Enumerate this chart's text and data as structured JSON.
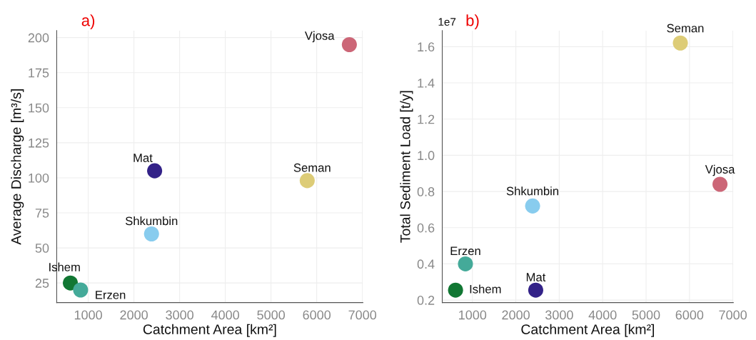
{
  "chart_data": [
    {
      "type": "scatter",
      "title": "a)",
      "xlabel": "Catchment Area [km²]",
      "ylabel": "Average Discharge [m³/s]",
      "xlim": [
        310,
        7010
      ],
      "xticks": [
        1000,
        2000,
        3000,
        4000,
        5000,
        6000,
        7000
      ],
      "ylim": [
        11,
        205
      ],
      "yticks": [
        25,
        50,
        75,
        100,
        125,
        150,
        175,
        200
      ],
      "grid": true,
      "marker": "circle",
      "series": [
        {
          "name": "Vjosa",
          "color": "#cc6677",
          "x": [
            6714
          ],
          "values": [
            195
          ]
        },
        {
          "name": "Mat",
          "color": "#332288",
          "x": [
            2453
          ],
          "values": [
            105
          ]
        },
        {
          "name": "Seman",
          "color": "#ddcc77",
          "x": [
            5792
          ],
          "values": [
            98
          ]
        },
        {
          "name": "Shkumbin",
          "color": "#88ccee",
          "x": [
            2385
          ],
          "values": [
            60
          ]
        },
        {
          "name": "Ishem",
          "color": "#117733",
          "x": [
            609
          ],
          "values": [
            25
          ]
        },
        {
          "name": "Erzen",
          "color": "#44aa99",
          "x": [
            833
          ],
          "values": [
            20
          ]
        }
      ]
    },
    {
      "type": "scatter",
      "title": "b)",
      "xlabel": "Catchment Area [km²]",
      "ylabel": "Total Sediment Load [t/y]",
      "annotations": [
        "1e7"
      ],
      "xlim": [
        305,
        7010
      ],
      "xticks": [
        1000,
        2000,
        3000,
        4000,
        5000,
        6000,
        7000
      ],
      "ylim": [
        0.186,
        1.689
      ],
      "yticks": [
        0.2,
        0.4,
        0.6,
        0.8,
        {
          "value": 1.0,
          "label": "1.0"
        },
        1.2,
        1.4,
        1.6
      ],
      "grid": true,
      "marker": "circle",
      "series": [
        {
          "name": "Seman",
          "color": "#ddcc77",
          "x": [
            5790
          ],
          "values": [
            1.62
          ]
        },
        {
          "name": "Vjosa",
          "color": "#cc6677",
          "x": [
            6703
          ],
          "values": [
            0.84
          ]
        },
        {
          "name": "Shkumbin",
          "color": "#88ccee",
          "x": [
            2386
          ],
          "values": [
            0.72
          ]
        },
        {
          "name": "Erzen",
          "color": "#44aa99",
          "x": [
            839
          ],
          "values": [
            0.4
          ]
        },
        {
          "name": "Ishem",
          "color": "#117733",
          "x": [
            611
          ],
          "values": [
            0.255
          ]
        },
        {
          "name": "Mat",
          "color": "#332288",
          "x": [
            2458
          ],
          "values": [
            0.255
          ]
        }
      ]
    }
  ]
}
